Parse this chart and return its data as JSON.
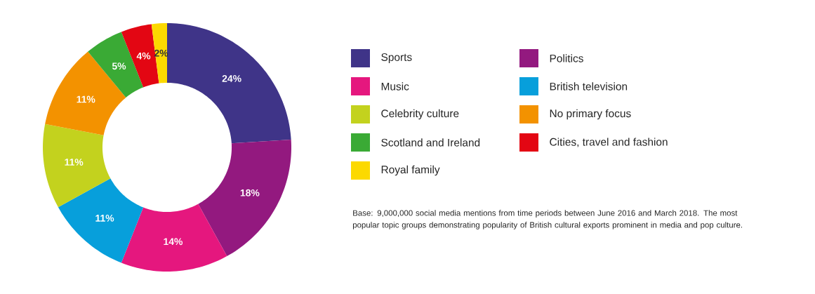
{
  "chart_data": {
    "type": "donut",
    "categories": [
      "Sports",
      "Politics",
      "Music",
      "British television",
      "Celebrity culture",
      "No primary focus",
      "Scotland and Ireland",
      "Cities, travel and fashion",
      "Royal family"
    ],
    "values": [
      24,
      18,
      14,
      11,
      11,
      11,
      5,
      4,
      2
    ],
    "value_labels": [
      "24%",
      "18%",
      "14%",
      "11%",
      "11%",
      "11%",
      "5%",
      "4%",
      "2%"
    ],
    "colors": [
      "#3f3488",
      "#93197f",
      "#e5177e",
      "#079fdb",
      "#c3d21e",
      "#f39200",
      "#3aaa35",
      "#e30613",
      "#fcd900"
    ],
    "legend": "right",
    "annotations": [
      "Base: 9,000,000 social media mentions from time periods between June 2016 and March 2018. The most popular topic groups demonstrating popularity of British cultural exports prominent in media and pop culture."
    ]
  }
}
